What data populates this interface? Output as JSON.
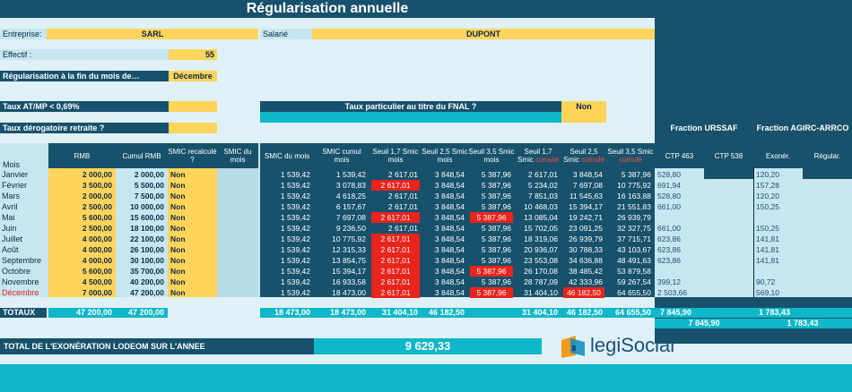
{
  "title": "Régularisation annuelle",
  "form": {
    "entreprise_label": "Entreprise:",
    "entreprise_value": "SARL",
    "salarie_label": "Salarié",
    "salarie_value": "DUPONT",
    "effectif_label": "Effectif :",
    "effectif_value": "55",
    "regul_label": "Régularisation à la fin du mois de…",
    "regul_value": "Décembre",
    "taux_atmp_label": "Taux AT/MP < 0,69%",
    "fnal_label": "Taux particulier au titre du FNAL ?",
    "fnal_value": "Non",
    "taux_derog_label": "Taux dérogatoire retraite ?"
  },
  "groups": {
    "urssaf": "Fraction URSSAF",
    "agirc": "Fraction AGIRC-ARRCO"
  },
  "headers": {
    "mois": "Mois",
    "rmb": "RMB",
    "cumul_rmb": "Cumul RMB",
    "smic_recalc": "SMIC recalculé ?",
    "smic_du_mois_a": "SMIC du mois",
    "smic_du_mois": "SMIC du mois",
    "smic_cumul": "SMIC cumul mois",
    "s17": "Seuil 1,7 Smic mois",
    "s25": "Seuil 2,5 Smic mois",
    "s35": "Seuil 3,5 Smic mois",
    "c17a": "Seuil 1,7",
    "c17b": "Smic",
    "c17c": "cumulé",
    "c25a": "Seuil 2,5",
    "c25b": "Smic",
    "c25c": "cumulé",
    "c35a": "Seuil 3,5 Smic",
    "c35c": "cumulé",
    "ctp463": "CTP 463",
    "ctp538": "CTP 538",
    "exoner": "Exonér.",
    "regular": "Régular."
  },
  "rows": [
    {
      "mois": "Janvier",
      "rmb": "2 000,00",
      "cumul": "2 000,00",
      "recalc": "Non",
      "smic": "1 539,42",
      "smiccum": "1 539,42",
      "s17": "2 617,01",
      "s25": "3 848,54",
      "s35": "5 387,96",
      "c17": "2 617,01",
      "c25": "3 848,54",
      "c35": "5 387,96",
      "ctp463": "528,80",
      "exon": "120,20"
    },
    {
      "mois": "Février",
      "rmb": "3 500,00",
      "cumul": "5 500,00",
      "recalc": "Non",
      "smic": "1 539,42",
      "smiccum": "3 078,83",
      "s17": "2 617,01",
      "s25": "3 848,54",
      "s35": "5 387,96",
      "c17": "5 234,02",
      "c25": "7 697,08",
      "c35": "10 775,92",
      "ctp463": "691,94",
      "exon": "157,28"
    },
    {
      "mois": "Mars",
      "rmb": "2 000,00",
      "cumul": "7 500,00",
      "recalc": "Non",
      "smic": "1 539,42",
      "smiccum": "4 618,25",
      "s17": "2 617,01",
      "s25": "3 848,54",
      "s35": "5 387,96",
      "c17": "7 851,03",
      "c25": "11 545,63",
      "c35": "16 163,88",
      "ctp463": "528,80",
      "exon": "120,20"
    },
    {
      "mois": "Avril",
      "rmb": "2 500,00",
      "cumul": "10 000,00",
      "recalc": "Non",
      "smic": "1 539,42",
      "smiccum": "6 157,67",
      "s17": "2 617,01",
      "s25": "3 848,54",
      "s35": "5 387,96",
      "c17": "10 468,03",
      "c25": "15 394,17",
      "c35": "21 551,83",
      "ctp463": "661,00",
      "exon": "150,25"
    },
    {
      "mois": "Mai",
      "rmb": "5 600,00",
      "cumul": "15 600,00",
      "recalc": "Non",
      "smic": "1 539,42",
      "smiccum": "7 697,08",
      "s17": "2 617,01",
      "s25": "3 848,54",
      "s35": "5 387,96",
      "c17": "13 085,04",
      "c25": "19 242,71",
      "c35": "26 939,79",
      "ctp463": "",
      "exon": ""
    },
    {
      "mois": "Juin",
      "rmb": "2 500,00",
      "cumul": "18 100,00",
      "recalc": "Non",
      "smic": "1 539,42",
      "smiccum": "9 236,50",
      "s17": "2 617,01",
      "s25": "3 848,54",
      "s35": "5 387,96",
      "c17": "15 702,05",
      "c25": "23 091,25",
      "c35": "32 327,75",
      "ctp463": "661,00",
      "exon": "150,25"
    },
    {
      "mois": "Juillet",
      "rmb": "4 000,00",
      "cumul": "22 100,00",
      "recalc": "Non",
      "smic": "1 539,42",
      "smiccum": "10 775,92",
      "s17": "2 617,01",
      "s25": "3 848,54",
      "s35": "5 387,96",
      "c17": "18 319,06",
      "c25": "26 939,79",
      "c35": "37 715,71",
      "ctp463": "623,86",
      "exon": "141,81"
    },
    {
      "mois": "Août",
      "rmb": "4 000,00",
      "cumul": "26 100,00",
      "recalc": "Non",
      "smic": "1 539,42",
      "smiccum": "12 315,33",
      "s17": "2 617,01",
      "s25": "3 848,54",
      "s35": "5 387,96",
      "c17": "20 936,07",
      "c25": "30 788,33",
      "c35": "43 103,67",
      "ctp463": "623,86",
      "exon": "141,81"
    },
    {
      "mois": "Septembre",
      "rmb": "4 000,00",
      "cumul": "30 100,00",
      "recalc": "Non",
      "smic": "1 539,42",
      "smiccum": "13 854,75",
      "s17": "2 617,01",
      "s25": "3 848,54",
      "s35": "5 387,96",
      "c17": "23 553,08",
      "c25": "34 636,88",
      "c35": "48 491,63",
      "ctp463": "623,86",
      "exon": "141,81"
    },
    {
      "mois": "Octobre",
      "rmb": "5 600,00",
      "cumul": "35 700,00",
      "recalc": "Non",
      "smic": "1 539,42",
      "smiccum": "15 394,17",
      "s17": "2 617,01",
      "s25": "3 848,54",
      "s35": "5 387,96",
      "c17": "26 170,08",
      "c25": "38 485,42",
      "c35": "53 879,58",
      "ctp463": "",
      "exon": ""
    },
    {
      "mois": "Novembre",
      "rmb": "4 500,00",
      "cumul": "40 200,00",
      "recalc": "Non",
      "smic": "1 539,42",
      "smiccum": "16 933,58",
      "s17": "2 617,01",
      "s25": "3 848,54",
      "s35": "5 387,96",
      "c17": "28 787,09",
      "c25": "42 333,96",
      "c35": "59 267,54",
      "ctp463": "399,12",
      "exon": "90,72"
    },
    {
      "mois": "Décembre",
      "rmb": "7 000,00",
      "cumul": "47 200,00",
      "recalc": "Non",
      "smic": "1 539,42",
      "smiccum": "18 473,00",
      "s17": "2 617,01",
      "s25": "3 848,54",
      "s35": "5 387,96",
      "c17": "31 404,10",
      "c25": "46 182,50",
      "c35": "64 655,50",
      "ctp463": "2 503,66",
      "exon": "569,10"
    }
  ],
  "highlights": {
    "s17": [
      1,
      4,
      6,
      7,
      8,
      9,
      10,
      11
    ],
    "s35": [
      4,
      9,
      11
    ],
    "c25": [
      11
    ]
  },
  "totals": {
    "label": "TOTAUX",
    "rmb": "47 200,00",
    "cumul": "47 200,00",
    "smic": "18 473,00",
    "smiccum": "18 473,00",
    "s17": "31 404,10",
    "s25": "46 182,50",
    "c17": "31 404,10",
    "c25": "46 182,50",
    "c35": "64 655,50",
    "urssaf1": "7 845,90",
    "urssaf2": "7 845,90",
    "agirc1": "1 783,43",
    "agirc2": "1 783,43"
  },
  "footer": {
    "label": "TOTAL DE L'EXONÉRATION LODEOM SUR L'ANNEE",
    "value": "9 629,33",
    "logo_text": "legiSocial"
  }
}
